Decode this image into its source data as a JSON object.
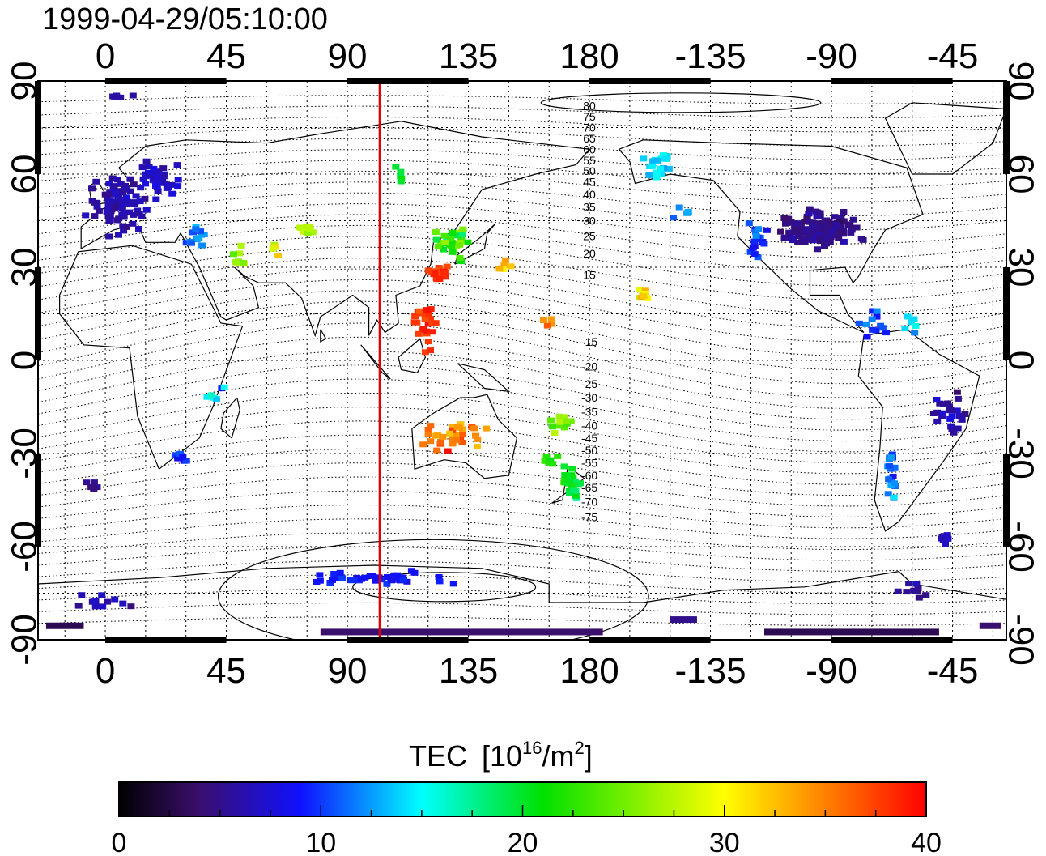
{
  "timestamp": "1999-04-29/05:10:00",
  "map": {
    "lon_range": [
      -25,
      335
    ],
    "lat_range": [
      -90,
      90
    ],
    "lon_ticks": [
      {
        "value": 0,
        "label": "0"
      },
      {
        "value": 45,
        "label": "45"
      },
      {
        "value": 90,
        "label": "90"
      },
      {
        "value": 135,
        "label": "135"
      },
      {
        "value": 180,
        "label": "180"
      },
      {
        "value": 225,
        "label": "-135"
      },
      {
        "value": 270,
        "label": "-90"
      },
      {
        "value": 315,
        "label": "-45"
      }
    ],
    "lat_ticks": [
      {
        "value": 90,
        "label": "90"
      },
      {
        "value": 60,
        "label": "60"
      },
      {
        "value": 30,
        "label": "30"
      },
      {
        "value": 0,
        "label": "0"
      },
      {
        "value": -30,
        "label": "-30"
      },
      {
        "value": -60,
        "label": "-60"
      },
      {
        "value": -90,
        "label": "-90"
      }
    ],
    "grid": true,
    "meridian_marker_lon": 102,
    "meridian_marker_color": "#e00000",
    "contour_labels": [
      {
        "label": "80",
        "lat": 82
      },
      {
        "label": "75",
        "lat": 78.5
      },
      {
        "label": "70",
        "lat": 75
      },
      {
        "label": "65",
        "lat": 71.5
      },
      {
        "label": "60",
        "lat": 68
      },
      {
        "label": "55",
        "lat": 64.5
      },
      {
        "label": "50",
        "lat": 61
      },
      {
        "label": "45",
        "lat": 57.5
      },
      {
        "label": "40",
        "lat": 53.5
      },
      {
        "label": "35",
        "lat": 49.5
      },
      {
        "label": "30",
        "lat": 45
      },
      {
        "label": "25",
        "lat": 40
      },
      {
        "label": "20",
        "lat": 34.5
      },
      {
        "label": "15",
        "lat": 27.5
      },
      {
        "label": "-15",
        "lat": 6
      },
      {
        "label": "-20",
        "lat": -2
      },
      {
        "label": "-25",
        "lat": -7.5
      },
      {
        "label": "-30",
        "lat": -12
      },
      {
        "label": "-35",
        "lat": -16.5
      },
      {
        "label": "-40",
        "lat": -21
      },
      {
        "label": "-45",
        "lat": -25
      },
      {
        "label": "-50",
        "lat": -29
      },
      {
        "label": "-55",
        "lat": -33
      },
      {
        "label": "-60",
        "lat": -37
      },
      {
        "label": "-65",
        "lat": -41
      },
      {
        "label": "-70",
        "lat": -45.5
      },
      {
        "label": "-75",
        "lat": -50.5
      }
    ],
    "contour_label_lon": 180
  },
  "colorbar": {
    "title": "TEC",
    "unit_open": "[10",
    "unit_exp": "16",
    "unit_mid": "/m",
    "unit_exp2": "2",
    "unit_close": "]",
    "min": 0,
    "max": 40,
    "ticks": [
      {
        "value": 0,
        "label": "0"
      },
      {
        "value": 10,
        "label": "10"
      },
      {
        "value": 20,
        "label": "20"
      },
      {
        "value": 30,
        "label": "30"
      },
      {
        "value": 40,
        "label": "40"
      }
    ],
    "stops": [
      {
        "v": 0,
        "c": "#000000"
      },
      {
        "v": 4,
        "c": "#3a0f6e"
      },
      {
        "v": 9,
        "c": "#1010ff"
      },
      {
        "v": 15,
        "c": "#00ffff"
      },
      {
        "v": 21,
        "c": "#00e000"
      },
      {
        "v": 30,
        "c": "#ffff00"
      },
      {
        "v": 35,
        "c": "#ff8000"
      },
      {
        "v": 40,
        "c": "#ff0000"
      }
    ]
  },
  "tec_clusters": [
    {
      "lon": 5,
      "lat": 50,
      "lon_spread": 13,
      "lat_spread": 12,
      "n": 90,
      "tec": 6,
      "tec_spread": 2
    },
    {
      "lon": 20,
      "lat": 58,
      "lon_spread": 10,
      "lat_spread": 8,
      "n": 40,
      "tec": 7,
      "tec_spread": 2
    },
    {
      "lon": 35,
      "lat": 40,
      "lon_spread": 6,
      "lat_spread": 6,
      "n": 12,
      "tec": 12,
      "tec_spread": 4
    },
    {
      "lon": 50,
      "lat": 33,
      "lon_spread": 6,
      "lat_spread": 5,
      "n": 8,
      "tec": 26,
      "tec_spread": 6
    },
    {
      "lon": 75,
      "lat": 42,
      "lon_spread": 6,
      "lat_spread": 2,
      "n": 10,
      "tec": 27,
      "tec_spread": 2
    },
    {
      "lon": 130,
      "lat": 38,
      "lon_spread": 10,
      "lat_spread": 7,
      "n": 35,
      "tec": 22,
      "tec_spread": 8
    },
    {
      "lon": 125,
      "lat": 28,
      "lon_spread": 6,
      "lat_spread": 3,
      "n": 20,
      "tec": 38,
      "tec_spread": 2
    },
    {
      "lon": 120,
      "lat": 10,
      "lon_spread": 6,
      "lat_spread": 12,
      "n": 25,
      "tec": 38,
      "tec_spread": 2
    },
    {
      "lon": 110,
      "lat": 58,
      "lon_spread": 4,
      "lat_spread": 5,
      "n": 5,
      "tec": 20,
      "tec_spread": 3
    },
    {
      "lon": 148,
      "lat": 30,
      "lon_spread": 5,
      "lat_spread": 5,
      "n": 6,
      "tec": 33,
      "tec_spread": 5
    },
    {
      "lon": 200,
      "lat": 21,
      "lon_spread": 3,
      "lat_spread": 3,
      "n": 10,
      "tec": 30,
      "tec_spread": 8
    },
    {
      "lon": 205,
      "lat": 62,
      "lon_spread": 8,
      "lat_spread": 6,
      "n": 18,
      "tec": 14,
      "tec_spread": 3
    },
    {
      "lon": 265,
      "lat": 42,
      "lon_spread": 20,
      "lat_spread": 8,
      "n": 140,
      "tec": 5,
      "tec_spread": 2
    },
    {
      "lon": 243,
      "lat": 40,
      "lon_spread": 6,
      "lat_spread": 8,
      "n": 20,
      "tec": 10,
      "tec_spread": 3
    },
    {
      "lon": 285,
      "lat": 12,
      "lon_spread": 8,
      "lat_spread": 6,
      "n": 12,
      "tec": 10,
      "tec_spread": 4
    },
    {
      "lon": 313,
      "lat": -15,
      "lon_spread": 8,
      "lat_spread": 12,
      "n": 25,
      "tec": 6,
      "tec_spread": 3
    },
    {
      "lon": 292,
      "lat": -35,
      "lon_spread": 3,
      "lat_spread": 14,
      "n": 25,
      "tec": 12,
      "tec_spread": 4
    },
    {
      "lon": 130,
      "lat": -25,
      "lon_spread": 14,
      "lat_spread": 8,
      "n": 35,
      "tec": 35,
      "tec_spread": 6
    },
    {
      "lon": 173,
      "lat": -40,
      "lon_spread": 5,
      "lat_spread": 8,
      "n": 25,
      "tec": 20,
      "tec_spread": 5
    },
    {
      "lon": 170,
      "lat": -20,
      "lon_spread": 6,
      "lat_spread": 4,
      "n": 12,
      "tec": 25,
      "tec_spread": 4
    },
    {
      "lon": 40,
      "lat": -10,
      "lon_spread": 8,
      "lat_spread": 6,
      "n": 6,
      "tec": 15,
      "tec_spread": 10
    },
    {
      "lon": 28,
      "lat": -32,
      "lon_spread": 5,
      "lat_spread": 3,
      "n": 6,
      "tec": 10,
      "tec_spread": 4
    },
    {
      "lon": -5,
      "lat": -40,
      "lon_spread": 4,
      "lat_spread": 3,
      "n": 5,
      "tec": 5,
      "tec_spread": 1
    },
    {
      "lon": 100,
      "lat": -70,
      "lon_spread": 40,
      "lat_spread": 3,
      "n": 40,
      "tec": 9,
      "tec_spread": 2
    },
    {
      "lon": 0,
      "lat": -78,
      "lon_spread": 15,
      "lat_spread": 3,
      "n": 12,
      "tec": 6,
      "tec_spread": 2
    },
    {
      "lon": 300,
      "lat": -74,
      "lon_spread": 8,
      "lat_spread": 4,
      "n": 10,
      "tec": 5,
      "tec_spread": 2
    },
    {
      "lon": 215,
      "lat": 48,
      "lon_spread": 8,
      "lat_spread": 4,
      "n": 6,
      "tec": 12,
      "tec_spread": 2
    },
    {
      "lon": 300,
      "lat": 12,
      "lon_spread": 6,
      "lat_spread": 4,
      "n": 6,
      "tec": 14,
      "tec_spread": 3
    },
    {
      "lon": 165,
      "lat": 12,
      "lon_spread": 4,
      "lat_spread": 5,
      "n": 4,
      "tec": 36,
      "tec_spread": 3
    },
    {
      "lon": 165,
      "lat": -32,
      "lon_spread": 4,
      "lat_spread": 4,
      "n": 8,
      "tec": 22,
      "tec_spread": 4
    },
    {
      "lon": 5,
      "lat": 85,
      "lon_spread": 8,
      "lat_spread": 1,
      "n": 6,
      "tec": 6,
      "tec_spread": 1
    },
    {
      "lon": 63,
      "lat": 35,
      "lon_spread": 2,
      "lat_spread": 3,
      "n": 4,
      "tec": 28,
      "tec_spread": 6
    },
    {
      "lon": 312,
      "lat": -58,
      "lon_spread": 6,
      "lat_spread": 3,
      "n": 8,
      "tec": 7,
      "tec_spread": 2
    }
  ],
  "tec_bands": [
    {
      "lon_from": 80,
      "lon_to": 185,
      "lat": -87.5,
      "tec": 4
    },
    {
      "lon_from": 245,
      "lon_to": 310,
      "lat": -87.5,
      "tec": 3
    },
    {
      "lon_from": -22,
      "lon_to": -8,
      "lat": -85.5,
      "tec": 3
    },
    {
      "lon_from": 325,
      "lon_to": 333,
      "lat": -85.5,
      "tec": 4
    },
    {
      "lon_from": 210,
      "lon_to": 220,
      "lat": -83.5,
      "tec": 5
    }
  ]
}
